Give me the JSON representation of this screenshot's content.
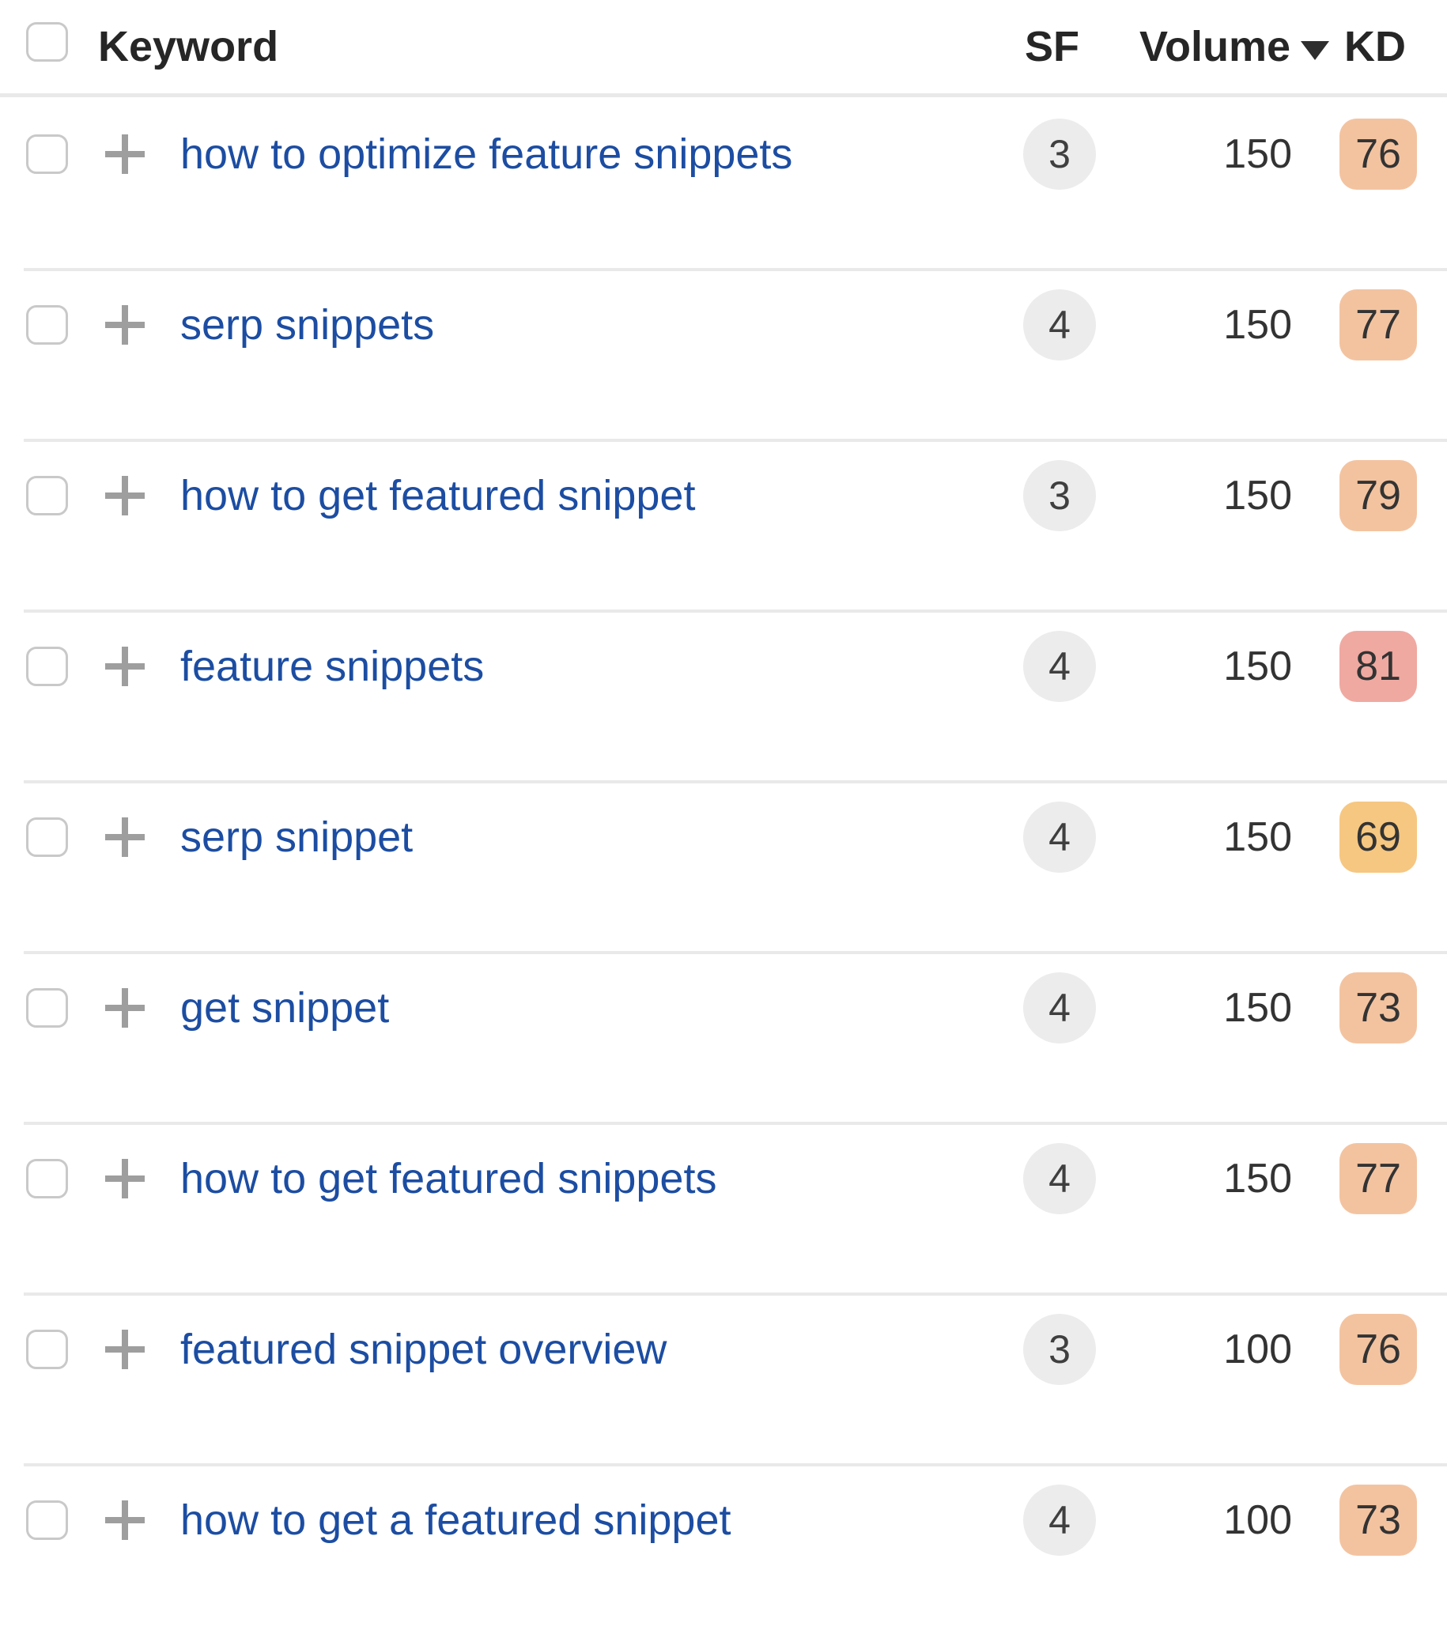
{
  "table": {
    "columns": {
      "keyword": "Keyword",
      "sf": "SF",
      "volume": "Volume",
      "kd": "KD"
    },
    "sort": {
      "column": "Volume",
      "direction": "desc"
    },
    "rows": [
      {
        "keyword": "how to optimize feature snippets",
        "sf": "3",
        "volume": "150",
        "kd": "76",
        "kd_color": "#f3c3a0"
      },
      {
        "keyword": "serp snippets",
        "sf": "4",
        "volume": "150",
        "kd": "77",
        "kd_color": "#f3c3a0"
      },
      {
        "keyword": "how to get featured snippet",
        "sf": "3",
        "volume": "150",
        "kd": "79",
        "kd_color": "#f3c3a0"
      },
      {
        "keyword": "feature snippets",
        "sf": "4",
        "volume": "150",
        "kd": "81",
        "kd_color": "#efa9a1"
      },
      {
        "keyword": "serp snippet",
        "sf": "4",
        "volume": "150",
        "kd": "69",
        "kd_color": "#f6c781"
      },
      {
        "keyword": "get snippet",
        "sf": "4",
        "volume": "150",
        "kd": "73",
        "kd_color": "#f3c3a0"
      },
      {
        "keyword": "how to get featured snippets",
        "sf": "4",
        "volume": "150",
        "kd": "77",
        "kd_color": "#f3c3a0"
      },
      {
        "keyword": "featured snippet overview",
        "sf": "3",
        "volume": "100",
        "kd": "76",
        "kd_color": "#f3c3a0"
      },
      {
        "keyword": "how to get a featured snippet",
        "sf": "4",
        "volume": "100",
        "kd": "73",
        "kd_color": "#f3c3a0"
      }
    ]
  },
  "icons": {
    "sort_desc": "triangle-down",
    "add": "plus"
  },
  "colors": {
    "keyword_link": "#1c4da2",
    "kd_orange": "#f3c3a0",
    "kd_red": "#efa9a1",
    "kd_amber": "#f6c781",
    "sf_badge_bg": "#ececec",
    "separator": "#e9e9e9",
    "header_text": "#262626",
    "value_text": "#333333"
  }
}
